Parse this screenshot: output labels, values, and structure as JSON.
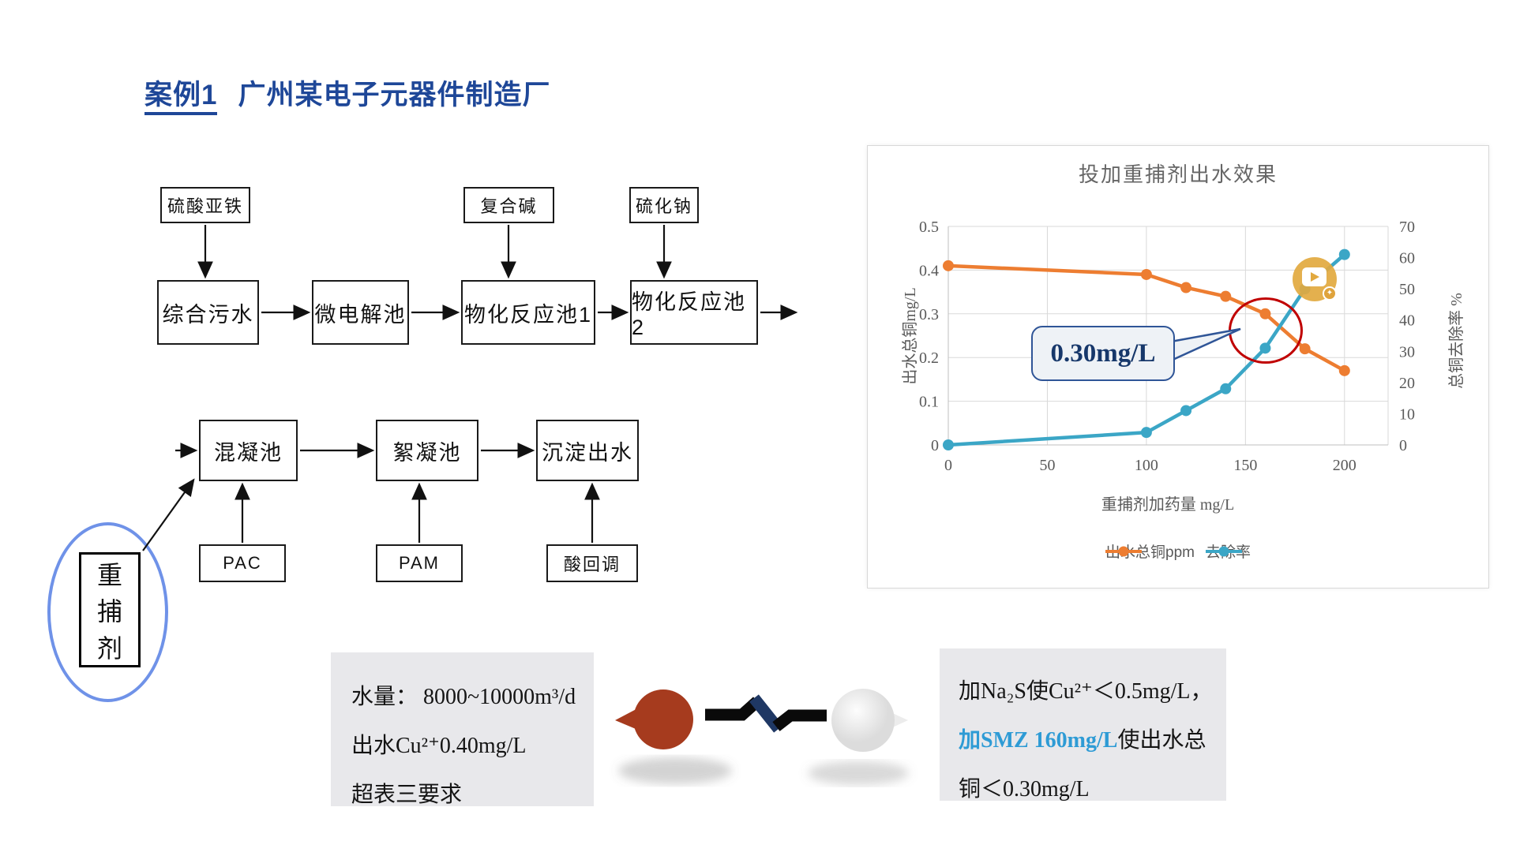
{
  "slide": {
    "title_prefix": "案例1",
    "title_rest": "广州某电子元器件制造厂"
  },
  "flow_top": {
    "chems": [
      "硫酸亚铁",
      "复合碱",
      "硫化钠"
    ],
    "stages": [
      "综合污水",
      "微电解池",
      "物化反应池1",
      "物化反应池2"
    ]
  },
  "flow_bottom": {
    "stages": [
      "混凝池",
      "絮凝池",
      "沉淀出水"
    ],
    "chems": [
      "PAC",
      "PAM",
      "酸回调"
    ]
  },
  "capture_agent": {
    "chars": [
      "重",
      "捕",
      "剂"
    ]
  },
  "chart_data": {
    "type": "line",
    "title": "投加重捕剂出水效果",
    "xlabel": "重捕剂加药量 mg/L",
    "ylabel_left": "出水总铜mg/L",
    "ylabel_right": "总铜去除率 %",
    "xlim": [
      0,
      222
    ],
    "ylim_left": [
      0,
      0.5
    ],
    "ylim_right": [
      0,
      70
    ],
    "x_ticks": [
      0,
      50,
      100,
      150,
      200
    ],
    "yticks_left": [
      0,
      0.1,
      0.2,
      0.3,
      0.4,
      0.5
    ],
    "yticks_right": [
      0,
      10,
      20,
      30,
      40,
      50,
      60,
      70
    ],
    "grid": true,
    "legend_position": "bottom",
    "callout": "0.30mg/L",
    "series": [
      {
        "name": "出水总铜ppm",
        "color": "#ED7D31",
        "axis": "left",
        "x": [
          0,
          100,
          120,
          140,
          160,
          180,
          200
        ],
        "values": [
          0.41,
          0.39,
          0.36,
          0.34,
          0.3,
          0.22,
          0.17
        ]
      },
      {
        "name": "去除率",
        "color": "#3BA6C6",
        "axis": "right",
        "x": [
          0,
          100,
          120,
          140,
          160,
          180,
          200
        ],
        "values": [
          0,
          4,
          11,
          18,
          31,
          50,
          61
        ]
      }
    ]
  },
  "left_note": {
    "line1": "水量： 8000~10000m³/d",
    "line2": "出水Cu²⁺0.40mg/L",
    "line3": "超表三要求"
  },
  "right_note": {
    "line1": "加Na₂S使Cu²⁺＜0.5mg/L，",
    "line2_highlight": "加SMZ 160mg/L",
    "line2_rest": "使出水总",
    "line3": "铜＜0.30mg/L",
    "highlight_color": "#2E9BD5"
  }
}
